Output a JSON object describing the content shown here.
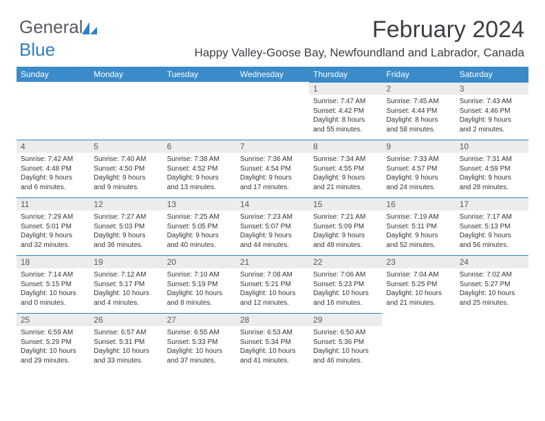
{
  "logo": {
    "text_gray": "General",
    "text_blue": "Blue"
  },
  "title": "February 2024",
  "subtitle": "Happy Valley-Goose Bay, Newfoundland and Labrador, Canada",
  "colors": {
    "header_bg": "#3b8bc8",
    "header_text": "#ffffff",
    "day_bar_bg": "#ececec",
    "day_bar_border": "#2f7fc2",
    "body_text": "#333333",
    "title_text": "#3a3f44"
  },
  "day_headers": [
    "Sunday",
    "Monday",
    "Tuesday",
    "Wednesday",
    "Thursday",
    "Friday",
    "Saturday"
  ],
  "weeks": [
    [
      null,
      null,
      null,
      null,
      {
        "n": "1",
        "sr": "7:47 AM",
        "ss": "4:42 PM",
        "dl": "8 hours and 55 minutes."
      },
      {
        "n": "2",
        "sr": "7:45 AM",
        "ss": "4:44 PM",
        "dl": "8 hours and 58 minutes."
      },
      {
        "n": "3",
        "sr": "7:43 AM",
        "ss": "4:46 PM",
        "dl": "9 hours and 2 minutes."
      }
    ],
    [
      {
        "n": "4",
        "sr": "7:42 AM",
        "ss": "4:48 PM",
        "dl": "9 hours and 6 minutes."
      },
      {
        "n": "5",
        "sr": "7:40 AM",
        "ss": "4:50 PM",
        "dl": "9 hours and 9 minutes."
      },
      {
        "n": "6",
        "sr": "7:38 AM",
        "ss": "4:52 PM",
        "dl": "9 hours and 13 minutes."
      },
      {
        "n": "7",
        "sr": "7:36 AM",
        "ss": "4:54 PM",
        "dl": "9 hours and 17 minutes."
      },
      {
        "n": "8",
        "sr": "7:34 AM",
        "ss": "4:55 PM",
        "dl": "9 hours and 21 minutes."
      },
      {
        "n": "9",
        "sr": "7:33 AM",
        "ss": "4:57 PM",
        "dl": "9 hours and 24 minutes."
      },
      {
        "n": "10",
        "sr": "7:31 AM",
        "ss": "4:59 PM",
        "dl": "9 hours and 28 minutes."
      }
    ],
    [
      {
        "n": "11",
        "sr": "7:29 AM",
        "ss": "5:01 PM",
        "dl": "9 hours and 32 minutes."
      },
      {
        "n": "12",
        "sr": "7:27 AM",
        "ss": "5:03 PM",
        "dl": "9 hours and 36 minutes."
      },
      {
        "n": "13",
        "sr": "7:25 AM",
        "ss": "5:05 PM",
        "dl": "9 hours and 40 minutes."
      },
      {
        "n": "14",
        "sr": "7:23 AM",
        "ss": "5:07 PM",
        "dl": "9 hours and 44 minutes."
      },
      {
        "n": "15",
        "sr": "7:21 AM",
        "ss": "5:09 PM",
        "dl": "9 hours and 48 minutes."
      },
      {
        "n": "16",
        "sr": "7:19 AM",
        "ss": "5:11 PM",
        "dl": "9 hours and 52 minutes."
      },
      {
        "n": "17",
        "sr": "7:17 AM",
        "ss": "5:13 PM",
        "dl": "9 hours and 56 minutes."
      }
    ],
    [
      {
        "n": "18",
        "sr": "7:14 AM",
        "ss": "5:15 PM",
        "dl": "10 hours and 0 minutes."
      },
      {
        "n": "19",
        "sr": "7:12 AM",
        "ss": "5:17 PM",
        "dl": "10 hours and 4 minutes."
      },
      {
        "n": "20",
        "sr": "7:10 AM",
        "ss": "5:19 PM",
        "dl": "10 hours and 8 minutes."
      },
      {
        "n": "21",
        "sr": "7:08 AM",
        "ss": "5:21 PM",
        "dl": "10 hours and 12 minutes."
      },
      {
        "n": "22",
        "sr": "7:06 AM",
        "ss": "5:23 PM",
        "dl": "10 hours and 16 minutes."
      },
      {
        "n": "23",
        "sr": "7:04 AM",
        "ss": "5:25 PM",
        "dl": "10 hours and 21 minutes."
      },
      {
        "n": "24",
        "sr": "7:02 AM",
        "ss": "5:27 PM",
        "dl": "10 hours and 25 minutes."
      }
    ],
    [
      {
        "n": "25",
        "sr": "6:59 AM",
        "ss": "5:29 PM",
        "dl": "10 hours and 29 minutes."
      },
      {
        "n": "26",
        "sr": "6:57 AM",
        "ss": "5:31 PM",
        "dl": "10 hours and 33 minutes."
      },
      {
        "n": "27",
        "sr": "6:55 AM",
        "ss": "5:33 PM",
        "dl": "10 hours and 37 minutes."
      },
      {
        "n": "28",
        "sr": "6:53 AM",
        "ss": "5:34 PM",
        "dl": "10 hours and 41 minutes."
      },
      {
        "n": "29",
        "sr": "6:50 AM",
        "ss": "5:36 PM",
        "dl": "10 hours and 46 minutes."
      },
      null,
      null
    ]
  ],
  "labels": {
    "sunrise": "Sunrise:",
    "sunset": "Sunset:",
    "daylight": "Daylight:"
  }
}
